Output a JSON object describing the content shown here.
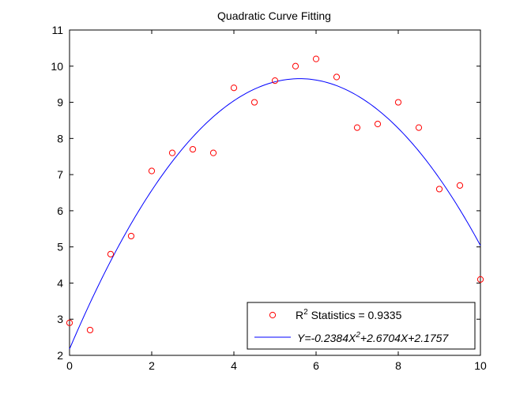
{
  "chart_data": {
    "type": "scatter",
    "title": "Quadratic Curve Fitting",
    "xlabel": "",
    "ylabel": "",
    "xlim": [
      0,
      10
    ],
    "ylim": [
      2,
      11
    ],
    "xticks": [
      0,
      2,
      4,
      6,
      8,
      10
    ],
    "yticks": [
      2,
      3,
      4,
      5,
      6,
      7,
      8,
      9,
      10,
      11
    ],
    "grid": false,
    "legend_position": "bottom-right",
    "series": [
      {
        "name": "R² Statistics = 0.9335",
        "name_parts": {
          "base": "R",
          "sup": "2",
          "rest": " Statistics = 0.9335"
        },
        "kind": "scatter",
        "marker": "open-circle",
        "color": "#ff0000",
        "x": [
          0,
          0.5,
          1,
          1.5,
          2,
          2.5,
          3,
          3.5,
          4,
          4.5,
          5,
          5.5,
          6,
          6.5,
          7,
          7.5,
          8,
          8.5,
          9,
          9.5,
          10
        ],
        "y": [
          2.9,
          2.7,
          4.8,
          5.3,
          7.1,
          7.6,
          7.7,
          7.6,
          9.4,
          9.0,
          9.6,
          10.0,
          10.2,
          9.7,
          8.3,
          8.4,
          9.0,
          8.3,
          6.6,
          6.7,
          4.1
        ]
      },
      {
        "name": "Y=-0.2384X²+2.6704X+2.1757",
        "name_parts": [
          "Y=-0.2384X",
          "2",
          "+2.6704X+2.1757"
        ],
        "kind": "line",
        "color": "#0000ff",
        "coefficients": {
          "a": -0.2384,
          "b": 2.6704,
          "c": 2.1757
        }
      }
    ]
  }
}
